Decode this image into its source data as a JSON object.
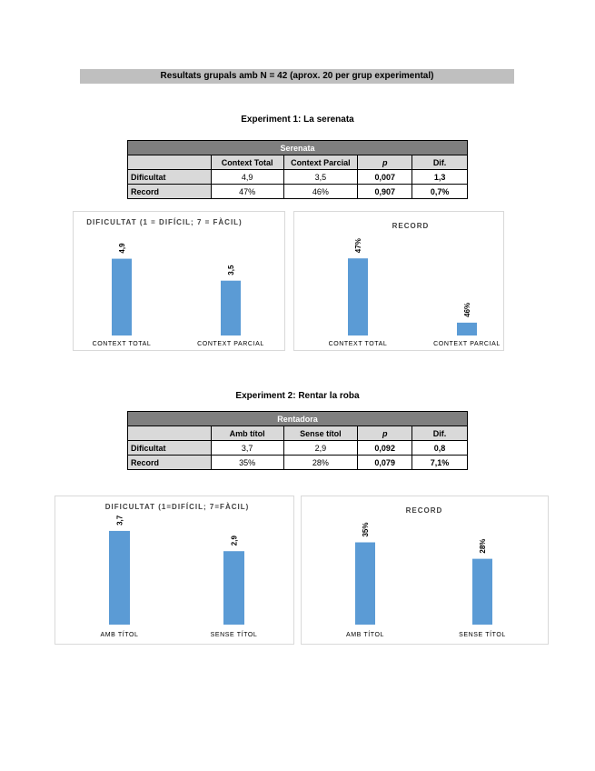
{
  "banner": "Resultats grupals amb N = 42 (aprox. 20 per grup experimental)",
  "experiments": [
    {
      "title": "Experiment 1: La serenata",
      "table": {
        "caption": "Serenata",
        "headers": [
          "",
          "Context Total",
          "Context Parcial",
          "p",
          "Dif."
        ],
        "rows": [
          [
            "Dificultat",
            "4,9",
            "3,5",
            "0,007",
            "1,3"
          ],
          [
            "Record",
            "47%",
            "46%",
            "0,907",
            "0,7%"
          ]
        ]
      }
    },
    {
      "title": "Experiment 2: Rentar la roba",
      "table": {
        "caption": "Rentadora",
        "headers": [
          "",
          "Amb títol",
          "Sense títol",
          "p",
          "Dif."
        ],
        "rows": [
          [
            "Dificultat",
            "3,7",
            "2,9",
            "0,092",
            "0,8"
          ],
          [
            "Record",
            "35%",
            "28%",
            "0,079",
            "7,1%"
          ]
        ]
      }
    }
  ],
  "colors": {
    "bar": "#5b9bd5",
    "caption_bg": "#7f7f7f",
    "header_bg": "#d9d9d9",
    "banner_bg": "#bfbfbf"
  },
  "chart_data": [
    {
      "type": "bar",
      "title": "DIFICULTAT (1 = DIFÍCIL; 7 = FÀCIL)",
      "categories": [
        "CONTEXT TOTAL",
        "CONTEXT PARCIAL"
      ],
      "values": [
        4.9,
        3.5
      ],
      "labels": [
        "4,9",
        "3,5"
      ],
      "ylim": [
        0,
        6.5
      ]
    },
    {
      "type": "bar",
      "title": "RECORD",
      "categories": [
        "CONTEXT TOTAL",
        "CONTEXT PARCIAL"
      ],
      "values": [
        47,
        46
      ],
      "labels": [
        "47%",
        "46%"
      ],
      "ylim": [
        45.8,
        47.3
      ]
    },
    {
      "type": "bar",
      "title": "DIFICULTAT (1=DIFÍCIL; 7=FÀCIL)",
      "categories": [
        "AMB TÍTOL",
        "SENSE TÍTOL"
      ],
      "values": [
        3.7,
        2.9
      ],
      "labels": [
        "3,7",
        "2,9"
      ],
      "ylim": [
        0,
        4.2
      ]
    },
    {
      "type": "bar",
      "title": "RECORD",
      "categories": [
        "AMB TÍTOL",
        "SENSE TÍTOL"
      ],
      "values": [
        35,
        28
      ],
      "labels": [
        "35%",
        "28%"
      ],
      "ylim": [
        0,
        41
      ]
    }
  ]
}
